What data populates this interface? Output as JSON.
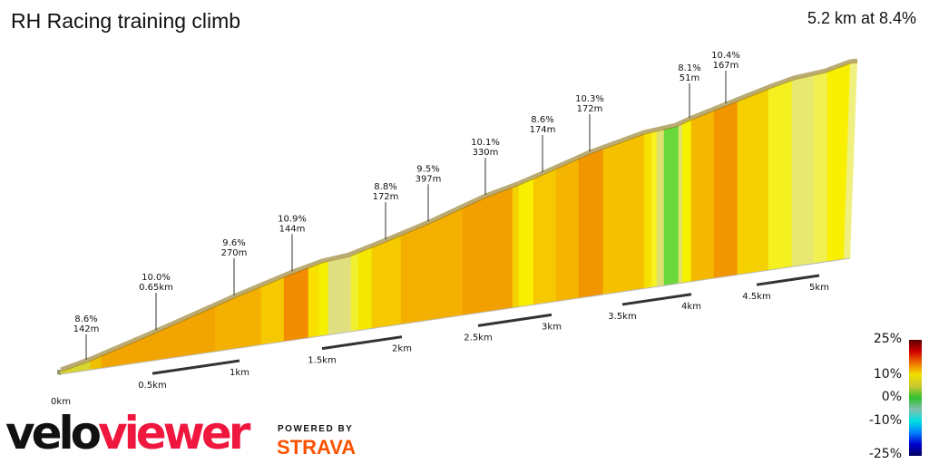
{
  "title": "RH Racing training climb",
  "summary": "5.2 km at 8.4%",
  "chart_data": {
    "type": "area",
    "title": "RH Racing training climb",
    "distance_km": 5.2,
    "average_gradient_pct": 8.4,
    "x_ticks": [
      "0km",
      "0.5km",
      "1km",
      "1.5km",
      "2km",
      "2.5km",
      "3km",
      "3.5km",
      "4km",
      "4.5km",
      "5km"
    ],
    "annotations": [
      {
        "gradient": "8.6%",
        "length": "142m"
      },
      {
        "gradient": "10.0%",
        "length": "0.65km"
      },
      {
        "gradient": "9.6%",
        "length": "270m"
      },
      {
        "gradient": "10.9%",
        "length": "144m"
      },
      {
        "gradient": "8.8%",
        "length": "172m"
      },
      {
        "gradient": "9.5%",
        "length": "397m"
      },
      {
        "gradient": "10.1%",
        "length": "330m"
      },
      {
        "gradient": "8.6%",
        "length": "174m"
      },
      {
        "gradient": "10.3%",
        "length": "172m"
      },
      {
        "gradient": "8.1%",
        "length": "51m"
      },
      {
        "gradient": "10.4%",
        "length": "167m"
      }
    ],
    "segment_colors": [
      "#d8d430",
      "#f0c000",
      "#f2a500",
      "#f4b000",
      "#f5c800",
      "#f28c00",
      "#f8e000",
      "#f5f000",
      "#e0e080",
      "#f0f030",
      "#f5e800",
      "#f5c800",
      "#f4b000",
      "#f2a000",
      "#f5d000",
      "#f8f000",
      "#f5c800",
      "#f4b400",
      "#f29600",
      "#f5c000",
      "#f5e000",
      "#f8f020",
      "#e0e070",
      "#6ad83a",
      "#e0e070",
      "#f5f000",
      "#f5b800",
      "#f29600",
      "#f5d000",
      "#f5f020",
      "#e8e870",
      "#f0f050",
      "#f8f000"
    ],
    "legend": {
      "ticks": [
        "25%",
        "10%",
        "0%",
        "-10%",
        "-25%"
      ],
      "colors": [
        "#5a0000",
        "#d00000",
        "#f07000",
        "#f0e000",
        "#c8c830",
        "#30c030",
        "#80c0b0",
        "#00e0e0",
        "#0080ff",
        "#0000d0",
        "#000060"
      ]
    }
  },
  "branding": {
    "logo_part1": "velo",
    "logo_part2": "viewer",
    "powered": "POWERED BY",
    "strava": "STRAVA"
  }
}
